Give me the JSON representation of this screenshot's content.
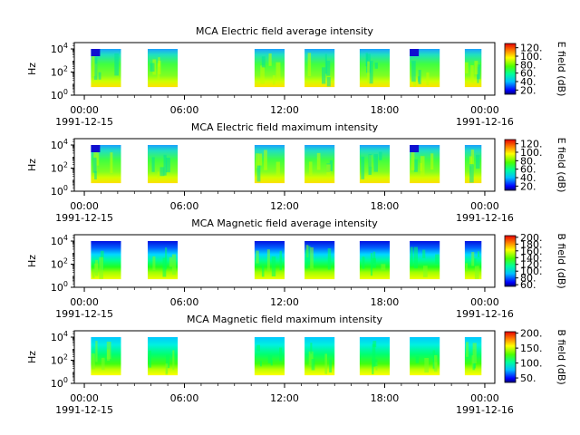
{
  "chart_data": [
    {
      "type": "heatmap",
      "title": "MCA  Electric field average intensity",
      "ylabel": "Hz",
      "y_scale": "log",
      "y_ticks": [
        {
          "exp": "0"
        },
        {
          "exp": "2"
        },
        {
          "exp": "4"
        }
      ],
      "x_ticks": [
        {
          "label": "00:00",
          "date": "1991-12-15"
        },
        {
          "label": "06:00",
          "date": ""
        },
        {
          "label": "12:00",
          "date": ""
        },
        {
          "label": "18:00",
          "date": ""
        },
        {
          "label": "00:00",
          "date": "1991-12-16"
        }
      ],
      "colorbar": {
        "label": "E field (dB)",
        "ticks": [
          "20.",
          "40.",
          "60.",
          "80.",
          "100.",
          "120."
        ],
        "range": [
          10,
          130
        ]
      },
      "palette": "rainbow",
      "data_intervals_hours": [
        [
          0.4,
          2.2
        ],
        [
          3.8,
          5.6
        ],
        [
          10.2,
          12.0
        ],
        [
          13.2,
          15.0
        ],
        [
          16.5,
          18.3
        ],
        [
          19.5,
          21.3
        ],
        [
          22.8,
          23.8
        ]
      ]
    },
    {
      "type": "heatmap",
      "title": "MCA  Electric field maximum intensity",
      "ylabel": "Hz",
      "y_scale": "log",
      "y_ticks": [
        {
          "exp": "0"
        },
        {
          "exp": "2"
        },
        {
          "exp": "4"
        }
      ],
      "x_ticks": [
        {
          "label": "00:00",
          "date": "1991-12-15"
        },
        {
          "label": "06:00",
          "date": ""
        },
        {
          "label": "12:00",
          "date": ""
        },
        {
          "label": "18:00",
          "date": ""
        },
        {
          "label": "00:00",
          "date": "1991-12-16"
        }
      ],
      "colorbar": {
        "label": "E field (dB)",
        "ticks": [
          "20.",
          "40.",
          "60.",
          "80.",
          "100.",
          "120."
        ],
        "range": [
          10,
          130
        ]
      },
      "palette": "rainbow",
      "data_intervals_hours": [
        [
          0.4,
          2.2
        ],
        [
          3.8,
          5.6
        ],
        [
          10.2,
          12.0
        ],
        [
          13.2,
          15.0
        ],
        [
          16.5,
          18.3
        ],
        [
          19.5,
          21.3
        ],
        [
          22.8,
          23.8
        ]
      ]
    },
    {
      "type": "heatmap",
      "title": "MCA  Magnetic field average intensity",
      "ylabel": "Hz",
      "y_scale": "log",
      "y_ticks": [
        {
          "exp": "0"
        },
        {
          "exp": "2"
        },
        {
          "exp": "4"
        }
      ],
      "x_ticks": [
        {
          "label": "00:00",
          "date": "1991-12-15"
        },
        {
          "label": "06:00",
          "date": ""
        },
        {
          "label": "12:00",
          "date": ""
        },
        {
          "label": "18:00",
          "date": ""
        },
        {
          "label": "00:00",
          "date": "1991-12-16"
        }
      ],
      "colorbar": {
        "label": "B field (dB)",
        "ticks": [
          "60.",
          "80.",
          "100.",
          "120.",
          "140.",
          "160.",
          "180.",
          "200."
        ],
        "range": [
          55,
          205
        ]
      },
      "palette": "rainbow",
      "data_intervals_hours": [
        [
          0.4,
          2.2
        ],
        [
          3.8,
          5.6
        ],
        [
          10.2,
          12.0
        ],
        [
          13.2,
          15.0
        ],
        [
          16.5,
          18.3
        ],
        [
          19.5,
          21.3
        ],
        [
          22.8,
          23.8
        ]
      ]
    },
    {
      "type": "heatmap",
      "title": "MCA  Magnetic field maximum intensity",
      "ylabel": "Hz",
      "y_scale": "log",
      "y_ticks": [
        {
          "exp": "0"
        },
        {
          "exp": "2"
        },
        {
          "exp": "4"
        }
      ],
      "x_ticks": [
        {
          "label": "00:00",
          "date": "1991-12-15"
        },
        {
          "label": "06:00",
          "date": ""
        },
        {
          "label": "12:00",
          "date": ""
        },
        {
          "label": "18:00",
          "date": ""
        },
        {
          "label": "00:00",
          "date": "1991-12-16"
        }
      ],
      "colorbar": {
        "label": "B field (dB)",
        "ticks": [
          "50.",
          "100.",
          "150.",
          "200."
        ],
        "range": [
          35,
          205
        ]
      },
      "palette": "rainbow",
      "data_intervals_hours": [
        [
          0.4,
          2.2
        ],
        [
          3.8,
          5.6
        ],
        [
          10.2,
          12.0
        ],
        [
          13.2,
          15.0
        ],
        [
          16.5,
          18.3
        ],
        [
          19.5,
          21.3
        ],
        [
          22.8,
          23.8
        ]
      ]
    }
  ]
}
